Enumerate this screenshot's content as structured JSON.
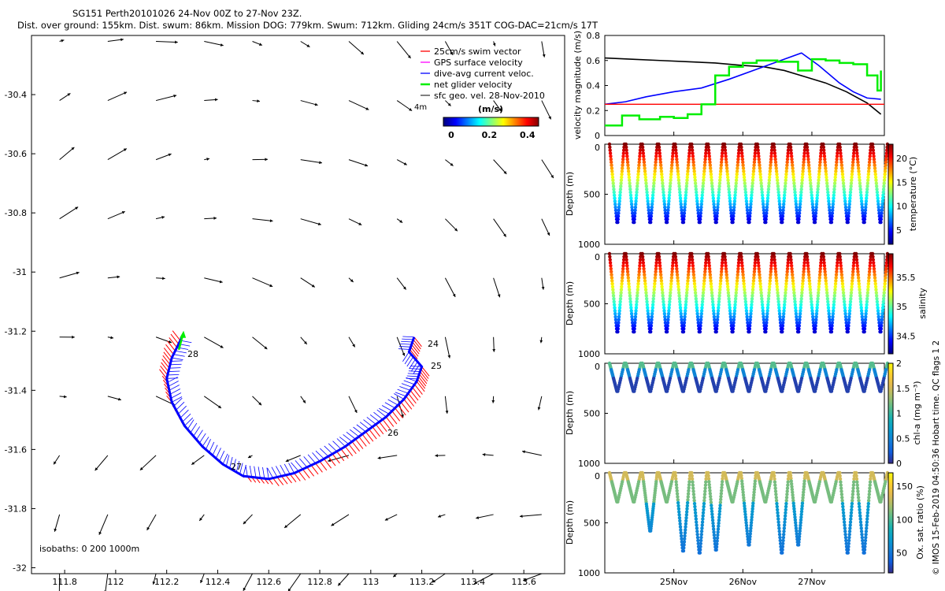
{
  "figure": {
    "title_line1": "SG151 Perth20101026 24-Nov 00Z to 27-Nov 23Z.",
    "title_line2": "Dist. over ground: 155km. Dist. swum: 86km. Mission DOG: 779km. Swum: 712km. Gliding 24cm/s 351T COG-DAC=21cm/s 17T",
    "credit": "© IMOS 15-Feb-2019 04:50:36 Hobart time. QC flags 1  2"
  },
  "chart_data": [
    {
      "type": "scatter",
      "name": "map",
      "xticks": [
        "111.8",
        "112",
        "112.2",
        "112.4",
        "112.6",
        "112.8",
        "113",
        "113.2",
        "113.4",
        "113.6"
      ],
      "yticks": [
        "-30.4",
        "-30.6",
        "-30.8",
        "-31",
        "-31.2",
        "-31.4",
        "-31.6",
        "-31.8",
        "-32"
      ],
      "xlim": [
        111.67,
        113.76
      ],
      "ylim": [
        -32.02,
        -30.2
      ],
      "legend": [
        {
          "label": "25cm/s swim vector",
          "color": "#ff0000"
        },
        {
          "label": "GPS surface velocity",
          "color": "#ff00ff"
        },
        {
          "label": "dive-avg current veloc.",
          "color": "#0000ff"
        },
        {
          "label": "net glider velocity",
          "color": "#00ee00"
        },
        {
          "label": "sfc geo. vel. 28-Nov-2010",
          "color": "#000000"
        }
      ],
      "legend_scale_label": "4m",
      "colorbar": {
        "title": "(m/s)",
        "ticks": [
          "0",
          "0.2",
          "0.4"
        ],
        "range": [
          0,
          0.5
        ]
      },
      "isobaths_label": "isobaths: 0   200  1000m",
      "track_labels": [
        "24",
        "25",
        "26",
        "27",
        "28"
      ],
      "track_points": [
        [
          113.17,
          -31.22
        ],
        [
          113.15,
          -31.27
        ],
        [
          113.2,
          -31.32
        ],
        [
          113.18,
          -31.37
        ],
        [
          113.13,
          -31.43
        ],
        [
          113.06,
          -31.49
        ],
        [
          112.98,
          -31.54
        ],
        [
          112.9,
          -31.59
        ],
        [
          112.8,
          -31.64
        ],
        [
          112.7,
          -31.68
        ],
        [
          112.6,
          -31.7
        ],
        [
          112.5,
          -31.69
        ],
        [
          112.42,
          -31.65
        ],
        [
          112.34,
          -31.59
        ],
        [
          112.27,
          -31.52
        ],
        [
          112.22,
          -31.44
        ],
        [
          112.2,
          -31.36
        ],
        [
          112.22,
          -31.29
        ],
        [
          112.26,
          -31.22
        ]
      ]
    },
    {
      "type": "line",
      "name": "velocity",
      "ylabel": "velocity magnitude (m/s)",
      "yticks": [
        "0",
        "0.2",
        "0.4",
        "0.6",
        "0.8"
      ],
      "ylim": [
        0,
        0.8
      ],
      "xlim": [
        0,
        4.05
      ],
      "xticks_days": [
        1,
        2,
        3
      ],
      "xtick_labels": [
        "25Nov",
        "26Nov",
        "27Nov"
      ],
      "series": [
        {
          "name": "black",
          "color": "#000000",
          "x": [
            0,
            0.4,
            0.8,
            1.2,
            1.6,
            2.0,
            2.3,
            2.6,
            2.9,
            3.2,
            3.5,
            3.8,
            4.0
          ],
          "y": [
            0.62,
            0.61,
            0.6,
            0.59,
            0.58,
            0.56,
            0.55,
            0.52,
            0.47,
            0.42,
            0.35,
            0.26,
            0.17
          ]
        },
        {
          "name": "blue",
          "color": "#0000ff",
          "x": [
            0,
            0.3,
            0.6,
            1.0,
            1.4,
            1.8,
            2.2,
            2.6,
            2.85,
            3.1,
            3.4,
            3.6,
            3.8,
            4.0
          ],
          "y": [
            0.25,
            0.27,
            0.31,
            0.35,
            0.38,
            0.45,
            0.53,
            0.61,
            0.66,
            0.56,
            0.42,
            0.35,
            0.3,
            0.29
          ]
        },
        {
          "name": "red",
          "color": "#ff0000",
          "x": [
            0,
            4.05
          ],
          "y": [
            0.25,
            0.25
          ]
        },
        {
          "name": "green",
          "color": "#00ee00",
          "x": [
            0,
            0.1,
            0.25,
            0.5,
            0.8,
            1.0,
            1.2,
            1.4,
            1.6,
            1.8,
            2.0,
            2.2,
            2.5,
            2.8,
            3.0,
            3.2,
            3.4,
            3.6,
            3.8,
            3.95,
            4.0
          ],
          "y": [
            0.08,
            0.08,
            0.16,
            0.13,
            0.15,
            0.14,
            0.17,
            0.25,
            0.48,
            0.55,
            0.58,
            0.6,
            0.59,
            0.52,
            0.61,
            0.6,
            0.58,
            0.57,
            0.48,
            0.36,
            0.52
          ]
        }
      ]
    },
    {
      "type": "scatter",
      "name": "temperature",
      "variable": "temperature",
      "ylabel": "Depth (m)",
      "yticks": [
        "0",
        "500",
        "1000"
      ],
      "ylim": [
        0,
        1000
      ],
      "max_depth": 780,
      "num_dives": 17,
      "colormap": "jet",
      "colorbar": {
        "label": "temperature (°C)",
        "ticks": [
          "5",
          "10",
          "15",
          "20"
        ],
        "range": [
          2,
          23
        ]
      }
    },
    {
      "type": "scatter",
      "name": "salinity",
      "variable": "salinity",
      "ylabel": "Depth (m)",
      "yticks": [
        "0",
        "500",
        "1000"
      ],
      "ylim": [
        0,
        1000
      ],
      "max_depth": 780,
      "num_dives": 17,
      "colormap": "jet",
      "colorbar": {
        "label": "salinity",
        "ticks": [
          "34.5",
          "35",
          "35.5"
        ],
        "range": [
          34.2,
          35.9
        ]
      }
    },
    {
      "type": "scatter",
      "name": "chla",
      "variable": "chl-a",
      "ylabel": "Depth (m)",
      "yticks": [
        "0",
        "500",
        "1000"
      ],
      "ylim": [
        0,
        1000
      ],
      "max_depth": 280,
      "num_dives": 17,
      "colormap": "parula",
      "colorbar": {
        "label": "chl-a (mg m⁻³)",
        "ticks": [
          "0",
          "0.5",
          "1",
          "1.5",
          "2"
        ],
        "range": [
          0,
          2
        ]
      }
    },
    {
      "type": "scatter",
      "name": "oxygen",
      "variable": "oxygen saturation",
      "ylabel": "Depth (m)",
      "yticks": [
        "0",
        "500",
        "1000"
      ],
      "ylim": [
        0,
        1000
      ],
      "num_dives": 17,
      "dive_depths": [
        290,
        290,
        580,
        290,
        780,
        800,
        770,
        290,
        720,
        290,
        800,
        720,
        290,
        290,
        800,
        800,
        290
      ],
      "colormap": "parula",
      "colorbar": {
        "label": "Ox. sat. ratio (%)",
        "ticks": [
          "50",
          "100",
          "150"
        ],
        "range": [
          20,
          170
        ]
      }
    }
  ]
}
